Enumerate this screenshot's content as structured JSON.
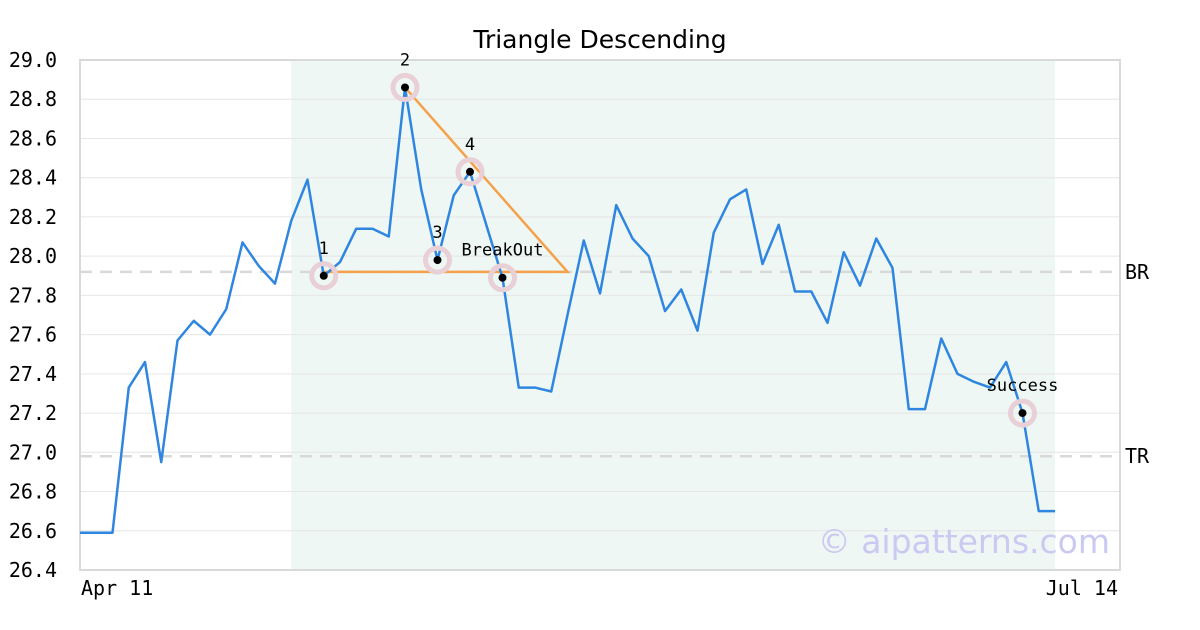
{
  "chart_data": {
    "type": "line",
    "title": "Triangle Descending",
    "ylim": [
      26.4,
      29.0
    ],
    "y_ticks": [
      "29.0",
      "28.8",
      "28.6",
      "28.4",
      "28.2",
      "28.0",
      "27.8",
      "27.6",
      "27.4",
      "27.2",
      "27.0",
      "26.8",
      "26.6",
      "26.4"
    ],
    "x_ticks": [
      "Apr 11",
      "Jul 14"
    ],
    "grid": true,
    "series": [
      {
        "color": "#2f86e0",
        "values": [
          26.59,
          26.59,
          26.59,
          27.33,
          27.46,
          26.95,
          27.57,
          27.67,
          27.6,
          27.73,
          28.07,
          27.95,
          27.86,
          28.18,
          28.39,
          27.9,
          27.97,
          28.14,
          28.14,
          28.1,
          28.86,
          28.34,
          27.98,
          28.31,
          28.43,
          28.16,
          27.89,
          27.33,
          27.33,
          27.31,
          27.7,
          28.08,
          27.81,
          28.26,
          28.09,
          28.0,
          27.72,
          27.83,
          27.62,
          28.12,
          28.29,
          28.34,
          27.96,
          28.16,
          27.82,
          27.82,
          27.66,
          28.02,
          27.85,
          28.09,
          27.94,
          27.22,
          27.22,
          27.58,
          27.4,
          27.36,
          27.33,
          27.46,
          27.2,
          26.7,
          26.7
        ]
      }
    ],
    "pattern_zone": {
      "start_index": 13,
      "end_index": 60,
      "color": "#eef7f3"
    },
    "levels": [
      {
        "label": "BR",
        "value": 27.92
      },
      {
        "label": "TR",
        "value": 26.98
      }
    ],
    "points": [
      {
        "label": "1",
        "index": 15,
        "value": 27.9
      },
      {
        "label": "2",
        "index": 20,
        "value": 28.86
      },
      {
        "label": "3",
        "index": 22,
        "value": 27.98
      },
      {
        "label": "4",
        "index": 24,
        "value": 28.43
      },
      {
        "label": "BreakOut",
        "index": 26,
        "value": 27.89
      },
      {
        "label": "Success",
        "index": 58,
        "value": 27.2
      }
    ],
    "triangle": {
      "color": "#f5a04a",
      "apex_index": 30,
      "apex_value": 27.92,
      "top_index": 20,
      "top_value": 28.86,
      "base_index": 15,
      "base_value": 27.92
    },
    "watermark": "© aipatterns.com"
  }
}
